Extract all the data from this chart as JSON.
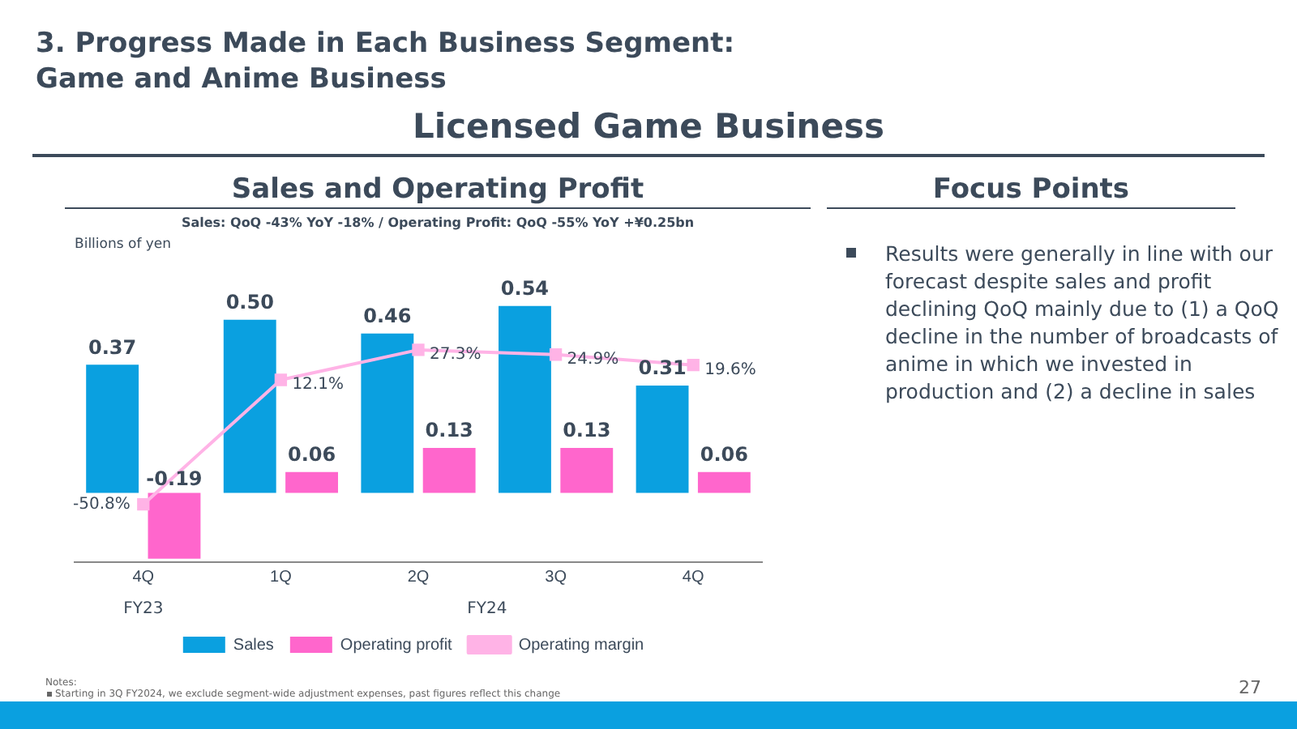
{
  "chart_data": {
    "type": "bar",
    "title": "Sales and Operating Profit",
    "subtitle": "Sales: QoQ -43% YoY -18% / Operating Profit: QoQ -55% YoY +¥0.25bn",
    "ylabel": "Billions of yen",
    "categories": [
      "4Q",
      "1Q",
      "2Q",
      "3Q",
      "4Q"
    ],
    "series": [
      {
        "name": "Sales",
        "color": "#0aa0e0",
        "values": [
          0.37,
          0.5,
          0.46,
          0.54,
          0.31
        ],
        "value_labels": [
          "0.37",
          "0.50",
          "0.46",
          "0.54",
          "0.31"
        ]
      },
      {
        "name": "Operating profit",
        "color": "#ff66cc",
        "values": [
          -0.19,
          0.06,
          0.13,
          0.13,
          0.06
        ],
        "value_labels": [
          "-0.19",
          "0.06",
          "0.13",
          "0.13",
          "0.06"
        ]
      },
      {
        "name": "Operating margin",
        "type": "line",
        "axis": "y2",
        "color": "#ffb3e6",
        "values": [
          -50.8,
          12.1,
          27.3,
          24.9,
          19.6
        ],
        "value_labels": [
          "-50.8%",
          "12.1%",
          "27.3%",
          "24.9%",
          "19.6%"
        ]
      }
    ],
    "tick_labels": "x",
    "grid": false,
    "legend": "bottom",
    "marker": "square",
    "annotations": [
      "3. Progress Made in Each Business Segment:\nGame and Anime Business",
      "Licensed Game Business",
      "Focus Points",
      "Results were generally in line with our forecast despite sales and profit declining QoQ mainly due to (1) a QoQ decline in the number of broadcasts of anime in which we invested in production and (2) a decline in sales",
      "FY23",
      "FY24",
      "Notes:",
      "Starting in 3Q FY2024, we exclude segment-wide adjustment expenses, past figures reflect this change",
      "27"
    ]
  }
}
